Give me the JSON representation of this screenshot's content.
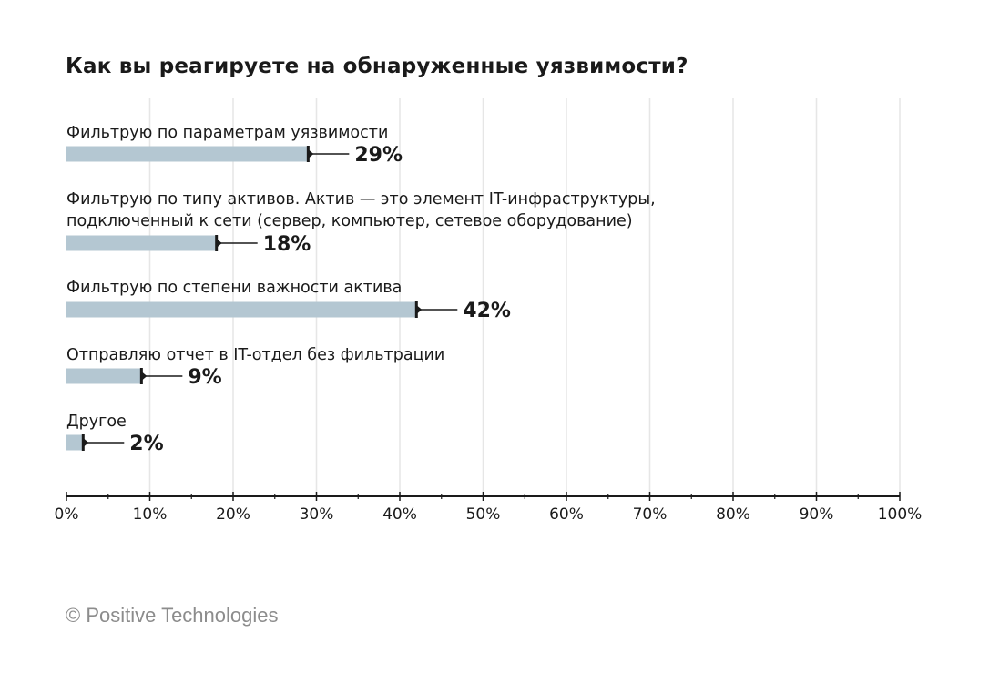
{
  "chart_data": {
    "type": "bar",
    "orientation": "horizontal",
    "title": "Как вы реагируете на обнаруженные уязвимости?",
    "categories": [
      [
        "Фильтрую по параметрам уязвимости"
      ],
      [
        "Фильтрую по типу активов. Актив — это элемент IT-инфраструктуры,",
        "подключенный к сети (сервер, компьютер, сетевое оборудование)"
      ],
      [
        "Фильтрую по степени важности актива"
      ],
      [
        "Отправляю отчет в IT-отдел без фильтрации"
      ],
      [
        "Другое"
      ]
    ],
    "values": [
      29,
      18,
      42,
      9,
      2
    ],
    "value_labels": [
      "29%",
      "18%",
      "42%",
      "9%",
      "2%"
    ],
    "xlim": [
      0,
      100
    ],
    "x_ticks": [
      0,
      10,
      20,
      30,
      40,
      50,
      60,
      70,
      80,
      90,
      100
    ],
    "x_tick_labels": [
      "0%",
      "10%",
      "20%",
      "30%",
      "40%",
      "50%",
      "60%",
      "70%",
      "80%",
      "90%",
      "100%"
    ],
    "grid": true,
    "bar_color": "#b4c7d2",
    "grid_color": "#e6e6e6",
    "axis_color": "#1a1a1a"
  },
  "footer": {
    "copyright": "© Positive Technologies"
  }
}
